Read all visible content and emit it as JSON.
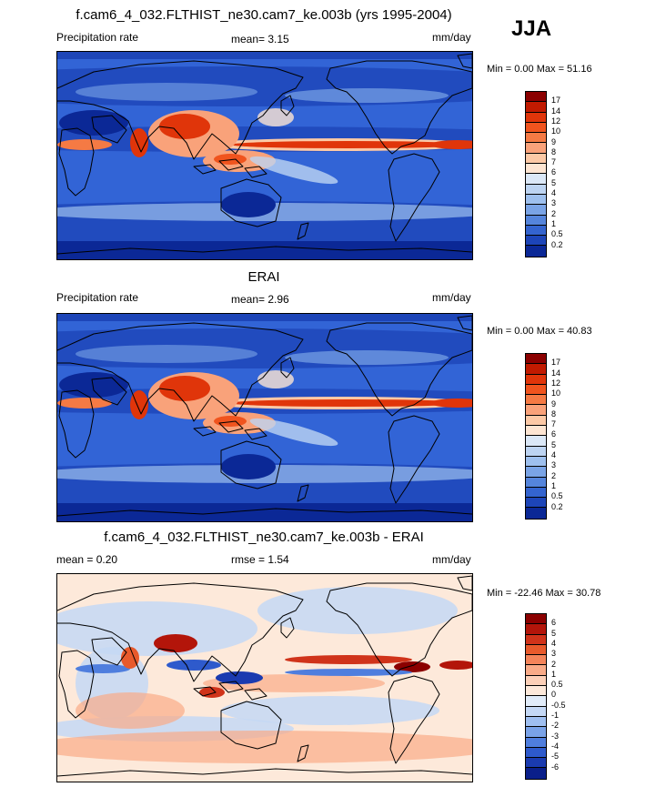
{
  "season": "JJA",
  "panels": [
    {
      "title": "f.cam6_4_032.FLTHIST_ne30.cam7_ke.003b (yrs 1995-2004)",
      "left_label": "Precipitation rate",
      "center_label": "mean=  3.15",
      "units": "mm/day",
      "range": "Min =   0.00 Max =  51.16",
      "levels": [
        "17",
        "14",
        "12",
        "10",
        "9",
        "8",
        "7",
        "6",
        "5",
        "4",
        "3",
        "2",
        "1",
        "0.5",
        "0.2"
      ],
      "colors": [
        "#8b0000",
        "#c11a00",
        "#e0350a",
        "#f0541e",
        "#f57a44",
        "#f9a27a",
        "#fcc9a6",
        "#fde5d2",
        "#dbe8f7",
        "#bdd4f2",
        "#9ec0ee",
        "#7aa4e6",
        "#5585dc",
        "#3464cf",
        "#1d45b8",
        "#0b2896"
      ],
      "map_style": "precip"
    },
    {
      "title": "ERAI",
      "left_label": "Precipitation rate",
      "center_label": "mean=  2.96",
      "units": "mm/day",
      "range": "Min =   0.00 Max =  40.83",
      "levels": [
        "17",
        "14",
        "12",
        "10",
        "9",
        "8",
        "7",
        "6",
        "5",
        "4",
        "3",
        "2",
        "1",
        "0.5",
        "0.2"
      ],
      "colors": [
        "#8b0000",
        "#c11a00",
        "#e0350a",
        "#f0541e",
        "#f57a44",
        "#f9a27a",
        "#fcc9a6",
        "#fde5d2",
        "#dbe8f7",
        "#bdd4f2",
        "#9ec0ee",
        "#7aa4e6",
        "#5585dc",
        "#3464cf",
        "#1d45b8",
        "#0b2896"
      ],
      "map_style": "precip"
    },
    {
      "title": "f.cam6_4_032.FLTHIST_ne30.cam7_ke.003b - ERAI",
      "left_label": "mean =  0.20",
      "center_label": "rmse =  1.54",
      "units": "mm/day",
      "range": "Min = -22.46 Max =  30.78",
      "levels": [
        "6",
        "5",
        "4",
        "3",
        "2",
        "1",
        "0.5",
        "0",
        "-0.5",
        "-1",
        "-2",
        "-3",
        "-4",
        "-5",
        "-6"
      ],
      "colors": [
        "#8b0000",
        "#b3150a",
        "#d0331a",
        "#e85a2c",
        "#f4845a",
        "#f9ab88",
        "#fcd0b8",
        "#fde9da",
        "#e1ecf9",
        "#c4d8f5",
        "#9fbff0",
        "#7aa3e8",
        "#4f7ede",
        "#2e5acc",
        "#1a3bb0",
        "#0a1f8a"
      ],
      "map_style": "diff"
    }
  ]
}
